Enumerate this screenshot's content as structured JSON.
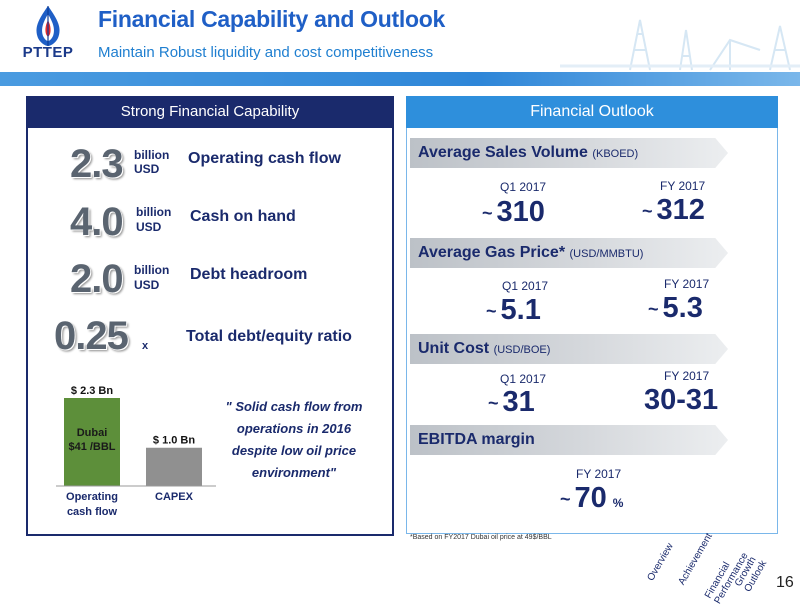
{
  "header": {
    "logo_text": "PTTEP",
    "title": "Financial Capability and Outlook",
    "subtitle": "Maintain Robust liquidity and cost competitiveness"
  },
  "left_panel": {
    "title": "Strong Financial Capability",
    "metrics": [
      {
        "value": "2.3",
        "unit_line1": "billion",
        "unit_line2": "USD",
        "label": "Operating cash flow"
      },
      {
        "value": "4.0",
        "unit_line1": "billion",
        "unit_line2": "USD",
        "label": "Cash on hand"
      },
      {
        "value": "2.0",
        "unit_line1": "billion",
        "unit_line2": "USD",
        "label": "Debt headroom"
      },
      {
        "value": "0.25",
        "unit": "x",
        "label": "Total debt/equity ratio"
      }
    ],
    "quote": "\" Solid cash flow from operations in 2016 despite low oil price environment\""
  },
  "chart_data": {
    "type": "bar",
    "categories": [
      "Operating cash flow",
      "CAPEX"
    ],
    "category_labels": [
      [
        "Operating",
        "cash flow"
      ],
      [
        "CAPEX"
      ]
    ],
    "values": [
      2.3,
      1.0
    ],
    "value_labels": [
      "$ 2.3 Bn",
      "$ 1.0 Bn"
    ],
    "bar_inner_label": [
      "Dubai",
      "$41 /BBL"
    ],
    "ylim": [
      0,
      2.3
    ],
    "colors": [
      "#5d8f3a",
      "#909090"
    ],
    "grid": false
  },
  "right_panel": {
    "title": "Financial Outlook",
    "sections": [
      {
        "label": "Average Sales Volume",
        "unit": "(KBOED)",
        "items": [
          {
            "period": "Q1 2017",
            "value": "310"
          },
          {
            "period": "FY 2017",
            "value": "312"
          }
        ]
      },
      {
        "label": "Average Gas Price*",
        "unit": "(USD/MMBTU)",
        "items": [
          {
            "period": "Q1 2017",
            "value": "5.1"
          },
          {
            "period": "FY 2017",
            "value": "5.3"
          }
        ]
      },
      {
        "label": "Unit Cost",
        "unit": "(USD/BOE)",
        "items": [
          {
            "period": "Q1 2017",
            "value": "31"
          },
          {
            "period": "FY 2017",
            "value": "30-31"
          }
        ]
      },
      {
        "label": "EBITDA margin",
        "unit": "",
        "items": [
          {
            "period": "FY 2017",
            "value": "70",
            "suffix": "%"
          }
        ]
      }
    ],
    "approx_symbol": "~",
    "footnote": "*Based on FY2017 Dubai oil price at 49$/BBL"
  },
  "nav": {
    "items": [
      "Overview",
      "Achievement",
      "Financial Performance",
      "Growth Outlook"
    ],
    "financial_line1": "Financial",
    "financial_line2": "Performance",
    "growth_line1": "Growth",
    "growth_line2": "Outlook"
  },
  "page_number": "16",
  "colors": {
    "navy": "#1a2a6c",
    "blue": "#2e8fdc",
    "bar_green": "#5d8f3a",
    "bar_gray": "#909090"
  }
}
